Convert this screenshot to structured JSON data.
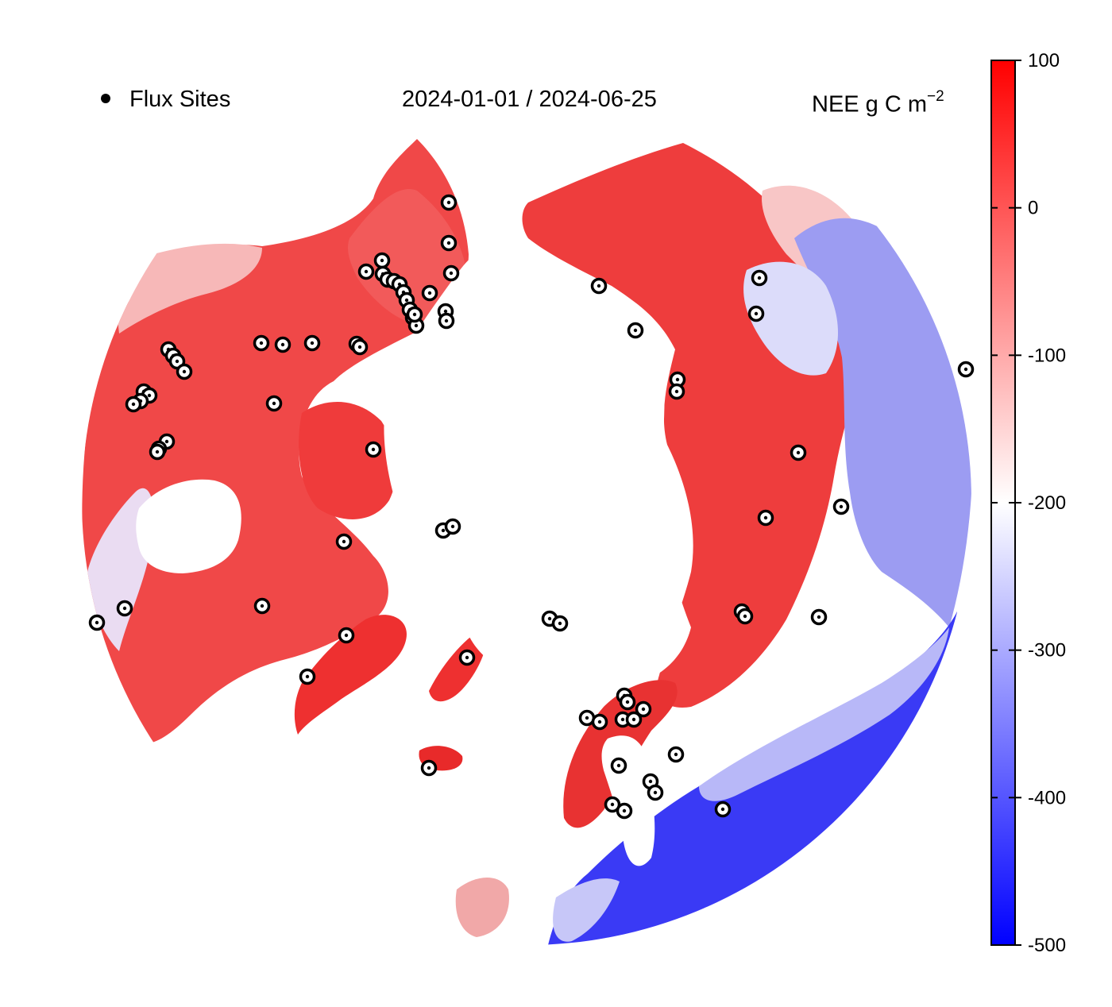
{
  "legend": {
    "marker_label": "Flux Sites"
  },
  "period": "2024-01-01 / 2024-06-25",
  "units": {
    "text": "NEE g C m",
    "exponent": "−2"
  },
  "colorbar": {
    "min": -500,
    "max": 100,
    "ticks": [
      "100",
      "0",
      "-100",
      "-200",
      "-300",
      "-400",
      "-500"
    ],
    "tick_values": [
      100,
      0,
      -100,
      -200,
      -300,
      -400,
      -500
    ],
    "colors": {
      "low": "#0000ff",
      "mid": "#ffffff",
      "high": "#ff0000"
    },
    "midpoint": -200
  },
  "flux_site_count": 70
}
